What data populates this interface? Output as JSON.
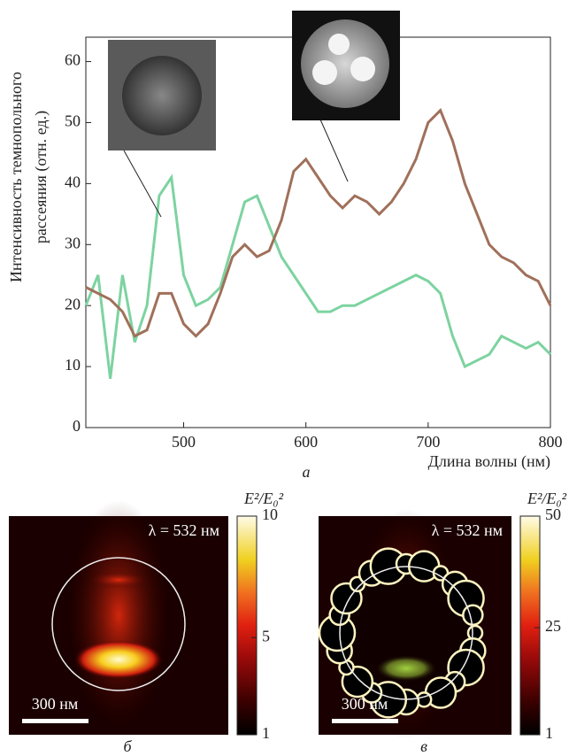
{
  "chart_data": [
    {
      "type": "line",
      "panel_label": "а",
      "xlabel": "Длина волны (нм)",
      "ylabel": [
        "Интенсивность темнопольного",
        "рассеяния (отн. ед.)"
      ],
      "x": [
        420,
        430,
        440,
        450,
        460,
        470,
        480,
        490,
        500,
        510,
        520,
        530,
        540,
        550,
        560,
        570,
        580,
        590,
        600,
        610,
        620,
        630,
        640,
        650,
        660,
        670,
        680,
        690,
        700,
        710,
        720,
        730,
        740,
        750,
        760,
        770,
        780,
        790,
        800
      ],
      "xlim": [
        420,
        800
      ],
      "ylim": [
        0,
        64
      ],
      "xticks": [
        500,
        600,
        700,
        800
      ],
      "yticks": [
        0,
        10,
        20,
        30,
        40,
        50,
        60
      ],
      "series": [
        {
          "color": "#7dd3a0",
          "values": [
            20,
            25,
            8,
            25,
            14,
            20,
            38,
            41,
            25,
            20,
            21,
            23,
            30,
            37,
            38,
            33,
            28,
            25,
            22,
            19,
            19,
            20,
            20,
            21,
            22,
            23,
            24,
            25,
            24,
            22,
            15,
            10,
            11,
            12,
            15,
            14,
            13,
            14,
            12
          ]
        },
        {
          "color": "#a0705a",
          "values": [
            23,
            22,
            21,
            19,
            15,
            16,
            22,
            22,
            17,
            15,
            17,
            22,
            28,
            30,
            28,
            29,
            34,
            42,
            44,
            41,
            38,
            36,
            38,
            37,
            35,
            37,
            40,
            44,
            50,
            52,
            47,
            40,
            35,
            30,
            28,
            27,
            25,
            24,
            20
          ]
        }
      ]
    },
    {
      "type": "field_map",
      "panel_label": "б",
      "annotation": "λ = 532 нм",
      "scale_bar": "300 нм",
      "colorbar_label": "E²/E₀²",
      "clim": [
        1,
        10
      ],
      "cticks": [
        1,
        5,
        10
      ]
    },
    {
      "type": "field_map",
      "panel_label": "в",
      "annotation": "λ = 532 нм",
      "scale_bar": "300 нм",
      "colorbar_label": "E²/E₀²",
      "clim": [
        1,
        50
      ],
      "cticks": [
        1,
        25,
        50
      ]
    }
  ]
}
